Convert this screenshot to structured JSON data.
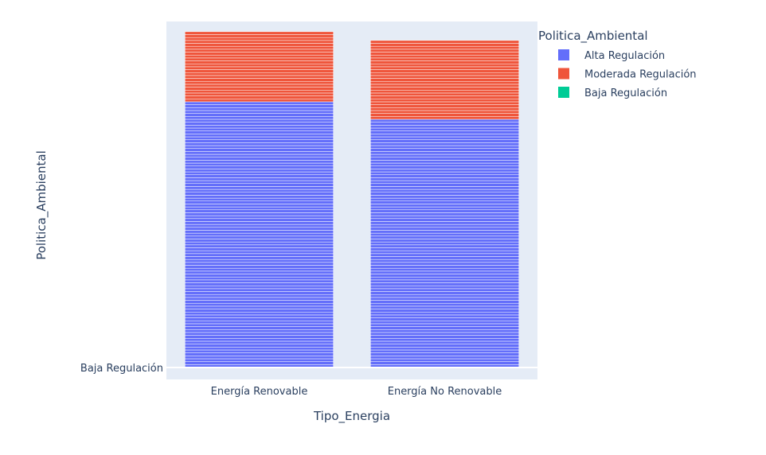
{
  "chart_data": {
    "type": "bar",
    "barmode": "stack",
    "title": "",
    "xlabel": "Tipo_Energia",
    "ylabel": "Politica_Ambiental",
    "categories": [
      "Energía Renovable",
      "Energía No Renovable"
    ],
    "y_tick_labels": [
      "Baja Regulación"
    ],
    "series": [
      {
        "name": "Alta Regulación",
        "color": "#636efa",
        "values": [
          91,
          85
        ]
      },
      {
        "name": "Moderada Regulación",
        "color": "#ef553b",
        "values": [
          24,
          27
        ]
      },
      {
        "name": "Baja Regulación",
        "color": "#00cc96",
        "values": [
          0,
          0
        ]
      }
    ],
    "ylim": [
      0,
      118.5
    ],
    "legend": {
      "title": "Politica_Ambiental",
      "position": "top-right"
    },
    "grid": true,
    "plot_bg": "#e5ecf6",
    "segment_outline": "#ffffff"
  }
}
